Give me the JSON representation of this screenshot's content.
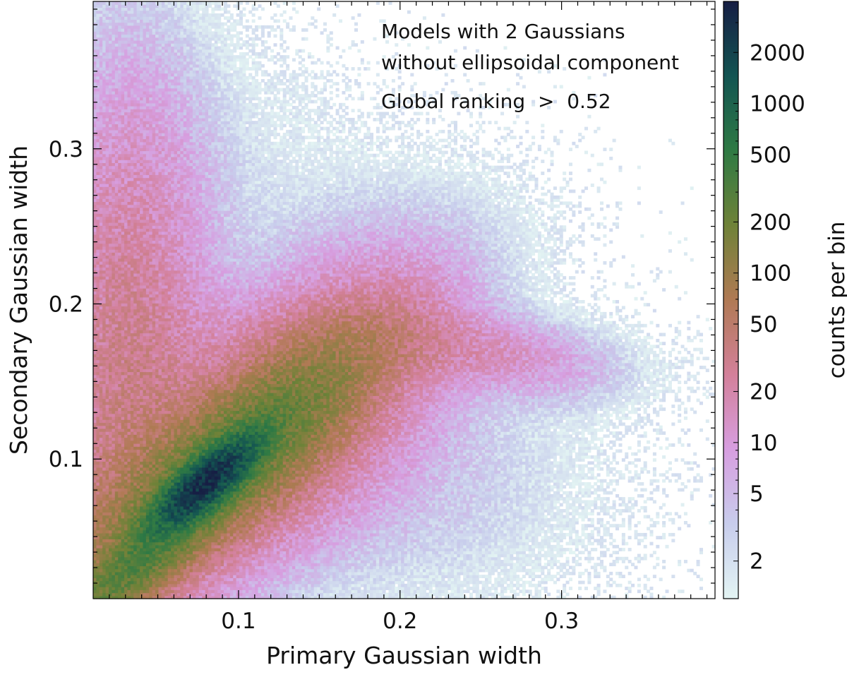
{
  "chart_data": {
    "type": "heatmap",
    "title": "",
    "annotations": [
      "Models with 2 Gaussians",
      "without ellipsoidal component",
      "Global ranking  >  0.52"
    ],
    "xlabel": "Primary Gaussian width",
    "ylabel": "Secondary Gaussian width",
    "xlim": [
      0.01,
      0.395
    ],
    "ylim": [
      0.01,
      0.395
    ],
    "x_ticks": [
      0.1,
      0.2,
      0.3
    ],
    "y_ticks": [
      0.1,
      0.2,
      0.3
    ],
    "x_tick_labels": [
      "0.1",
      "0.2",
      "0.3"
    ],
    "y_tick_labels": [
      "0.1",
      "0.2",
      "0.3"
    ],
    "colorbar": {
      "label": "counts per bin",
      "scale": "log",
      "range": [
        1.2,
        4000
      ],
      "ticks": [
        2,
        5,
        10,
        20,
        50,
        100,
        200,
        500,
        1000,
        2000
      ],
      "tick_labels": [
        "2",
        "5",
        "10",
        "20",
        "50",
        "100",
        "200",
        "500",
        "1000",
        "2000"
      ],
      "colormap": "cubehelix_r",
      "colors": [
        "#e3f4f3",
        "#c8cdec",
        "#d79ee0",
        "#d3809a",
        "#b07a54",
        "#6f8238",
        "#2f7a44",
        "#135452",
        "#171e44"
      ]
    },
    "density_components": [
      {
        "name": "main diagonal ridge",
        "x": [
          0.01,
          0.2
        ],
        "y": [
          0.01,
          0.155
        ],
        "peak": [
          0.08,
          0.085
        ],
        "peak_counts": 3000
      },
      {
        "name": "secondary branch",
        "x": [
          0.15,
          0.33
        ],
        "y": [
          0.15,
          0.19
        ],
        "peak": [
          0.21,
          0.175
        ],
        "peak_counts": 15
      },
      {
        "name": "low-x vertical band",
        "x": [
          0.01,
          0.06
        ],
        "y": [
          0.01,
          0.38
        ],
        "peak_counts": 30
      }
    ]
  }
}
